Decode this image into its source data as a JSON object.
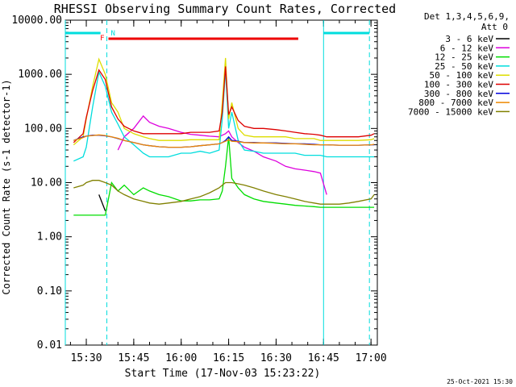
{
  "chart_data": {
    "type": "line",
    "title": "RHESSI Observing Summary Count Rates, Corrected",
    "xlabel": "Start Time (17-Nov-03 15:23:22)",
    "ylabel": "Corrected Count Rate (s-1 detector-1)",
    "yscale": "log",
    "ylim": [
      0.01,
      10000
    ],
    "xlim": [
      "15:23:22",
      "17:02:00"
    ],
    "x_ticks": [
      "15:30",
      "15:45",
      "16:00",
      "16:15",
      "16:30",
      "16:45",
      "17:00"
    ],
    "y_ticks": [
      "0.01",
      "0.10",
      "1.00",
      "10.00",
      "100.00",
      "1000.00",
      "10000.00"
    ],
    "detectors_label": "Det 1,3,4,5,6,9,",
    "attenuator_label": "Att 0",
    "footer_date": "25-Oct-2021 15:30",
    "x": [
      "15:23:22",
      "15:26",
      "15:29",
      "15:30",
      "15:32",
      "15:34",
      "15:36",
      "15:38",
      "15:40",
      "15:42",
      "15:45",
      "15:48",
      "15:50",
      "15:53",
      "15:56",
      "16:00",
      "16:03",
      "16:06",
      "16:09",
      "16:12",
      "16:13",
      "16:14",
      "16:15",
      "16:16",
      "16:18",
      "16:20",
      "16:23",
      "16:26",
      "16:30",
      "16:33",
      "16:36",
      "16:39",
      "16:42",
      "16:44",
      "16:46",
      "16:50",
      "16:53",
      "16:56",
      "17:00",
      "17:01"
    ],
    "series": [
      {
        "name": "3 - 6 keV",
        "color": "#000000",
        "values": [
          null,
          null,
          null,
          null,
          null,
          6,
          3,
          null,
          null,
          null,
          null,
          null,
          null,
          null,
          null,
          null,
          null,
          null,
          null,
          null,
          null,
          null,
          null,
          null,
          null,
          null,
          null,
          null,
          null,
          null,
          null,
          null,
          null,
          null,
          null,
          null,
          null,
          null,
          null,
          null
        ]
      },
      {
        "name": "6 - 12 keV",
        "color": "#dd00dd",
        "values": [
          null,
          null,
          null,
          null,
          null,
          null,
          null,
          null,
          40,
          70,
          100,
          170,
          130,
          110,
          100,
          85,
          78,
          75,
          72,
          70,
          75,
          80,
          90,
          70,
          55,
          45,
          38,
          30,
          25,
          20,
          18,
          17,
          16,
          15,
          6,
          null,
          null,
          null,
          null,
          null
        ]
      },
      {
        "name": "12 - 25 keV",
        "color": "#00dd00",
        "values": [
          null,
          2.5,
          2.5,
          2.5,
          2.5,
          2.5,
          2.5,
          10,
          7,
          9,
          6,
          8,
          7,
          6,
          5.5,
          4.6,
          4.6,
          4.8,
          4.8,
          5,
          7,
          20,
          70,
          12,
          8,
          6,
          5,
          4.5,
          4.2,
          4,
          3.8,
          3.7,
          3.6,
          3.5,
          3.5,
          3.5,
          3.5,
          3.5,
          3.5,
          3.5
        ]
      },
      {
        "name": "25 - 50 keV",
        "color": "#00dddd",
        "values": [
          null,
          25,
          30,
          45,
          250,
          1100,
          600,
          200,
          120,
          70,
          50,
          35,
          30,
          30,
          30,
          35,
          35,
          38,
          35,
          40,
          150,
          1200,
          100,
          200,
          60,
          40,
          38,
          35,
          35,
          35,
          35,
          32,
          32,
          32,
          30,
          30,
          30,
          30,
          30,
          30
        ]
      },
      {
        "name": "50 - 100 keV",
        "color": "#dddd00",
        "values": [
          null,
          50,
          70,
          150,
          600,
          1900,
          1000,
          300,
          200,
          100,
          80,
          70,
          65,
          60,
          60,
          60,
          62,
          62,
          62,
          62,
          300,
          2000,
          150,
          300,
          100,
          75,
          70,
          70,
          70,
          70,
          65,
          65,
          65,
          60,
          60,
          60,
          60,
          60,
          62,
          65
        ]
      },
      {
        "name": "100 - 300 keV",
        "color": "#dd0000",
        "values": [
          null,
          55,
          80,
          160,
          500,
          1200,
          800,
          250,
          150,
          110,
          90,
          80,
          80,
          80,
          80,
          80,
          85,
          85,
          85,
          90,
          200,
          1400,
          180,
          250,
          140,
          110,
          100,
          100,
          95,
          90,
          85,
          80,
          78,
          75,
          70,
          70,
          70,
          70,
          75,
          80
        ]
      },
      {
        "name": "300 - 800 keV",
        "color": "#0000dd",
        "values": [
          null,
          60,
          70,
          72,
          75,
          75,
          73,
          70,
          65,
          60,
          55,
          50,
          48,
          46,
          45,
          45,
          46,
          48,
          50,
          52,
          55,
          60,
          70,
          60,
          58,
          55,
          55,
          54,
          54,
          53,
          52,
          52,
          51,
          50,
          50,
          49,
          49,
          49,
          50,
          50
        ]
      },
      {
        "name": "800 - 7000 keV",
        "color": "#ee8800",
        "values": [
          null,
          60,
          68,
          72,
          74,
          76,
          74,
          70,
          66,
          60,
          55,
          50,
          48,
          46,
          45,
          45,
          46,
          48,
          50,
          52,
          55,
          58,
          62,
          58,
          57,
          55,
          54,
          54,
          53,
          52,
          52,
          51,
          50,
          50,
          50,
          49,
          49,
          49,
          50,
          51
        ]
      },
      {
        "name": "7000 - 15000 keV",
        "color": "#808000",
        "values": [
          null,
          8,
          9,
          10,
          11,
          11,
          10,
          9,
          7,
          6,
          5,
          4.5,
          4.2,
          4,
          4.2,
          4.5,
          5,
          5.5,
          6.5,
          8,
          9,
          10,
          10,
          10,
          9.5,
          9,
          8,
          7,
          6,
          5.5,
          5,
          4.5,
          4.2,
          4,
          4,
          4,
          4.2,
          4.5,
          5,
          6
        ]
      }
    ],
    "grid": false,
    "legend": "top-right outside",
    "annotations": [
      {
        "text": "F",
        "color": "#ff0000"
      },
      {
        "text": "N",
        "color": "#00dddd"
      }
    ],
    "bars": [
      {
        "name": "flare",
        "color": "#ee0000",
        "from": "15:37",
        "to": "16:37"
      },
      {
        "name": "night-1",
        "color": "#00dddd",
        "from": "15:23:22",
        "to": "15:34:30"
      },
      {
        "name": "night-2",
        "color": "#00dddd",
        "from": "16:45",
        "to": "16:59:30"
      }
    ],
    "vlines": [
      {
        "at": "15:23:22",
        "color": "#00dddd",
        "style": "solid"
      },
      {
        "at": "15:36:30",
        "color": "#00dddd",
        "style": "dashed"
      },
      {
        "at": "16:45",
        "color": "#00dddd",
        "style": "solid"
      },
      {
        "at": "16:59:30",
        "color": "#00dddd",
        "style": "dashed"
      }
    ]
  }
}
